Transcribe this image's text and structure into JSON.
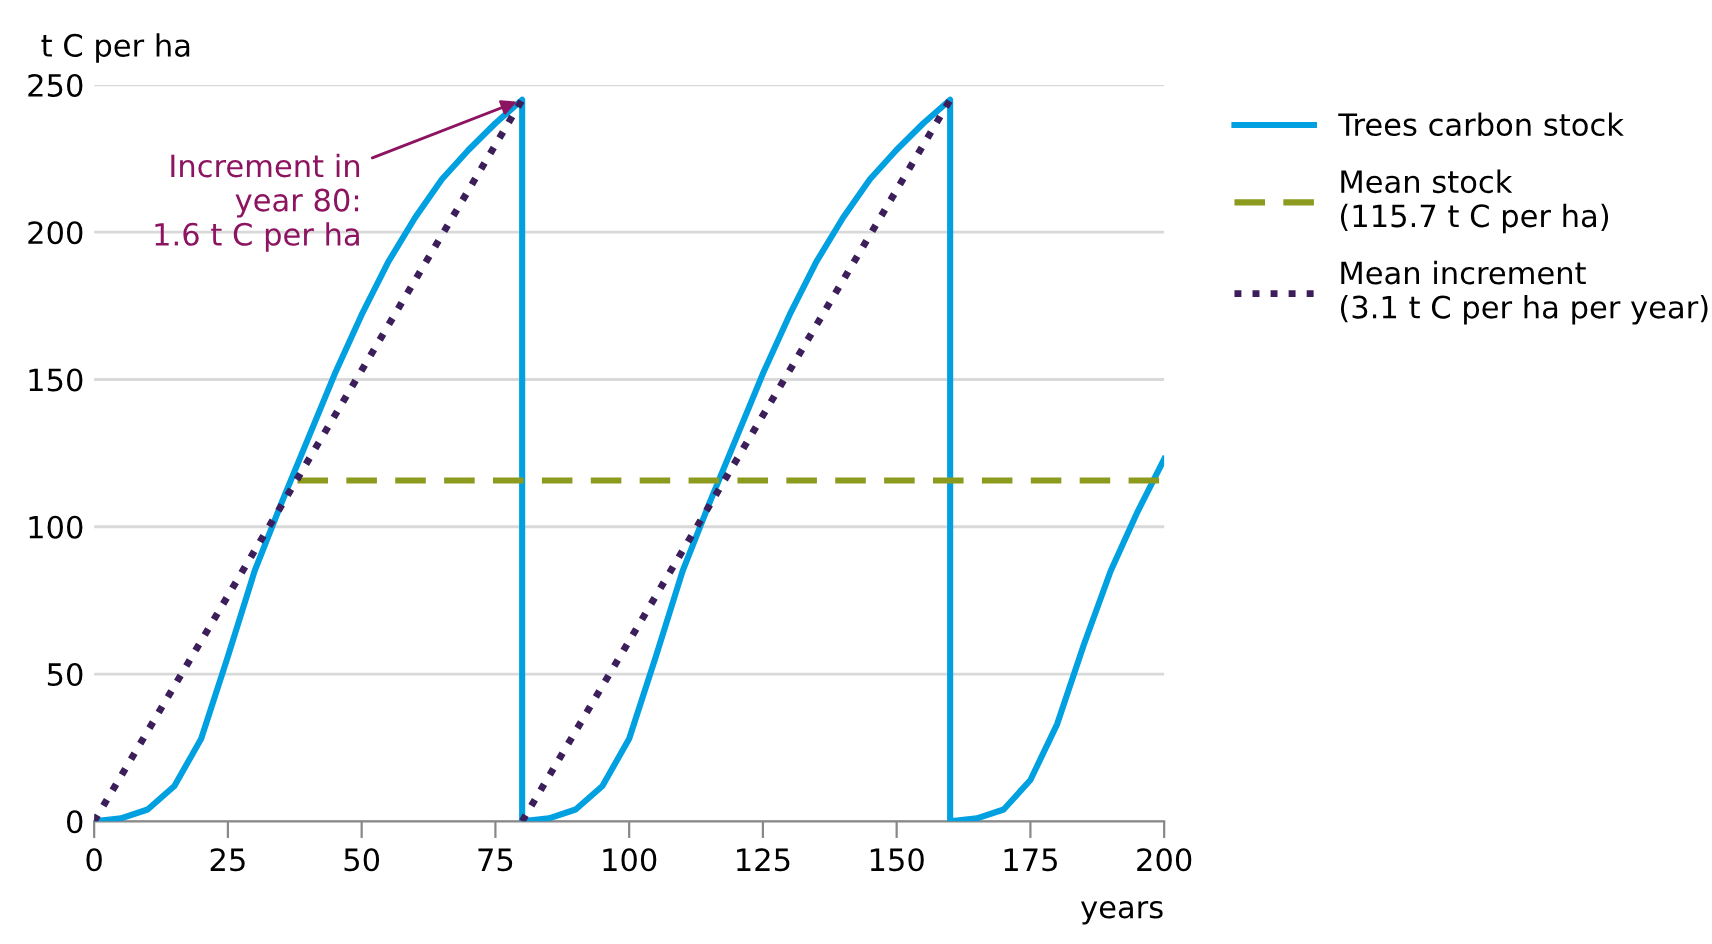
{
  "chart_data": {
    "type": "line",
    "ylabel": "t C per ha",
    "xlabel": "years",
    "xlim": [
      0,
      200
    ],
    "xticks": [
      0,
      25,
      50,
      75,
      100,
      125,
      150,
      175,
      200
    ],
    "ylim": [
      0,
      250
    ],
    "yticks": [
      0,
      50,
      100,
      150,
      200,
      250
    ],
    "grid": "y",
    "legend": "right",
    "series": [
      {
        "name": "Trees carbon stock",
        "color": "#00a0e1",
        "line_style": "solid",
        "x": [
          0,
          5,
          10,
          15,
          20,
          25,
          30,
          35,
          40,
          45,
          50,
          55,
          60,
          65,
          70,
          75,
          80,
          80,
          85,
          90,
          95,
          100,
          105,
          110,
          115,
          120,
          125,
          130,
          135,
          140,
          145,
          150,
          155,
          160,
          160,
          165,
          170,
          175,
          180,
          185,
          190,
          195,
          200
        ],
        "values": [
          0,
          1,
          4,
          12,
          28,
          56,
          85,
          108,
          130,
          152,
          172,
          190,
          205,
          218,
          228,
          237,
          245,
          0,
          1,
          4,
          12,
          28,
          56,
          85,
          108,
          130,
          152,
          172,
          190,
          205,
          218,
          228,
          237,
          245,
          0,
          1,
          4,
          14,
          33,
          60,
          85,
          105,
          123
        ]
      },
      {
        "name": "Mean stock\n(115.7 t C per ha)",
        "color": "#8c9a1e",
        "line_style": "dashed",
        "x": [
          38,
          200
        ],
        "values": [
          115.7,
          115.7
        ]
      },
      {
        "name": "Mean increment\n(3.1 t C per ha per year)",
        "color": "#3c1e5a",
        "line_style": "dotted",
        "x": [
          0,
          80
        ],
        "values": [
          0,
          245
        ]
      },
      {
        "color": "#3c1e5a",
        "line_style": "dotted",
        "x": [
          80,
          160
        ],
        "values": [
          0,
          245
        ]
      }
    ],
    "annotations": [
      {
        "text": "Increment in\nyear 80:\n1.6 t C per ha",
        "x": 80,
        "y": 245
      }
    ]
  }
}
